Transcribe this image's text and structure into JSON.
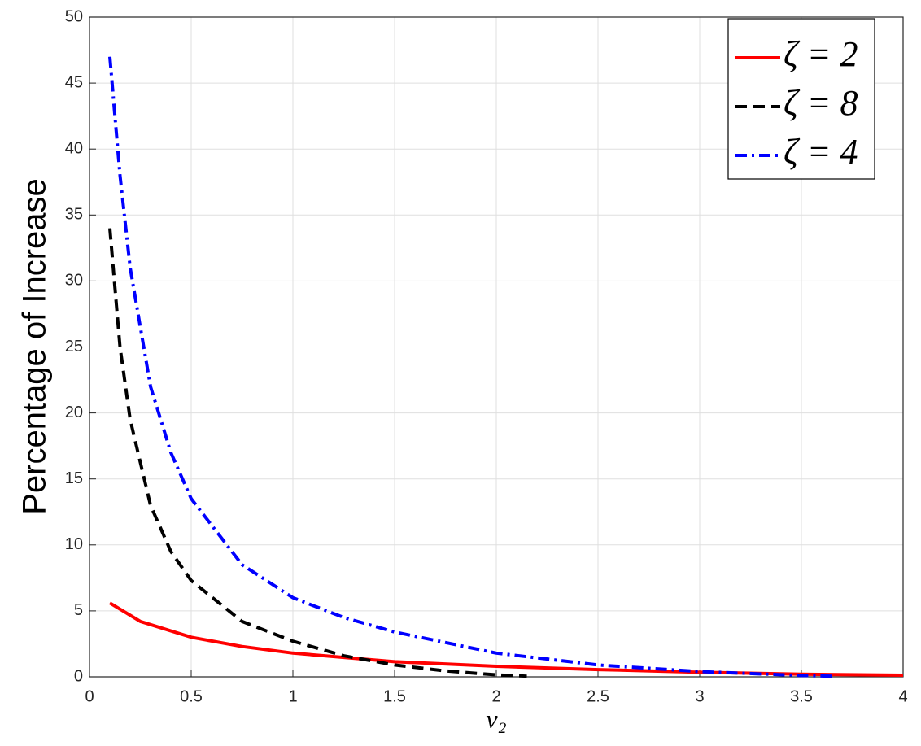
{
  "chart_data": {
    "type": "line",
    "y_label": "Percentage of Increase",
    "x_label": "v₂",
    "xlim": [
      0,
      4
    ],
    "xticks": [
      0,
      0.5,
      1,
      1.5,
      2,
      2.5,
      3,
      3.5,
      4
    ],
    "ylim": [
      0,
      50
    ],
    "yticks": [
      0,
      5,
      10,
      15,
      20,
      25,
      30,
      35,
      40,
      45,
      50
    ],
    "grid": true,
    "legend": "upper-right",
    "series": [
      {
        "name": "ζ = 2",
        "color": "#ff0000",
        "dash": "solid",
        "x": [
          0.1,
          0.25,
          0.5,
          0.75,
          1,
          1.5,
          2,
          2.5,
          3,
          3.5,
          4
        ],
        "values": [
          5.6,
          4.2,
          3.0,
          2.3,
          1.8,
          1.15,
          0.8,
          0.55,
          0.35,
          0.2,
          0.12
        ]
      },
      {
        "name": "ζ = 8",
        "color": "#000000",
        "dash": "dashed",
        "x": [
          0.1,
          0.15,
          0.2,
          0.3,
          0.4,
          0.5,
          0.75,
          1,
          1.25,
          1.5,
          1.75,
          2,
          2.15
        ],
        "values": [
          34,
          25,
          19.5,
          13,
          9.5,
          7.3,
          4.2,
          2.7,
          1.6,
          0.9,
          0.45,
          0.15,
          0.05
        ]
      },
      {
        "name": "ζ = 4",
        "color": "#0000ff",
        "dash": "dashdot",
        "x": [
          0.1,
          0.15,
          0.2,
          0.3,
          0.4,
          0.5,
          0.75,
          1,
          1.25,
          1.5,
          2,
          2.5,
          3,
          3.5,
          3.65
        ],
        "values": [
          47,
          38,
          31,
          22,
          17,
          13.5,
          8.5,
          6.0,
          4.5,
          3.4,
          1.8,
          0.9,
          0.4,
          0.1,
          0.05
        ]
      }
    ]
  }
}
